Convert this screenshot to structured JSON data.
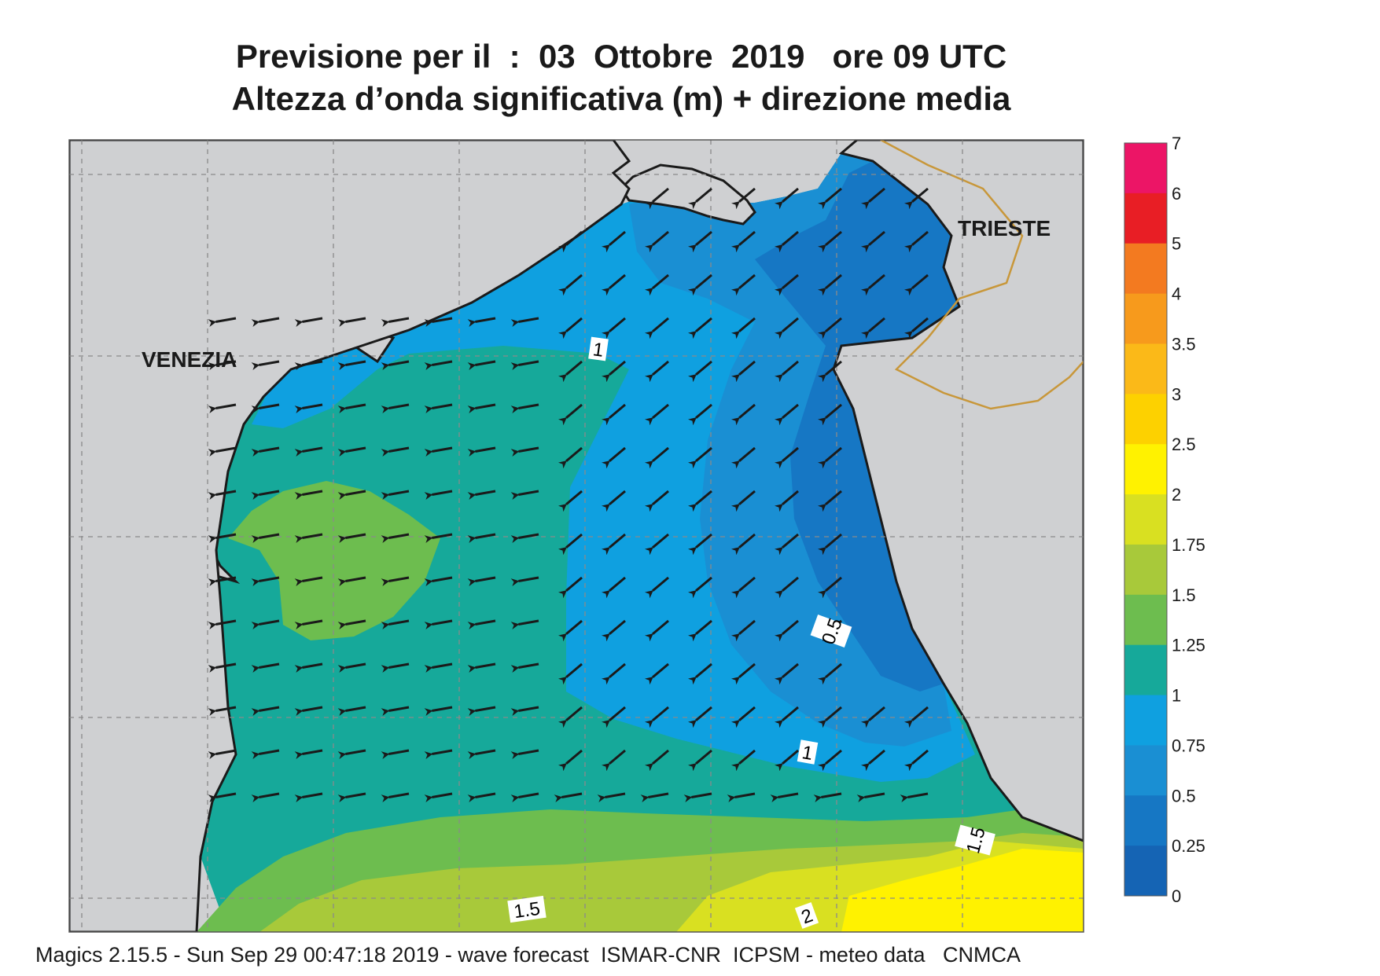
{
  "header": {
    "title_line1": "Previsione per il  :  03  Ottobre  2019   ore 09 UTC",
    "title_line2": "Altezza d’onda significativa (m) + direzione media"
  },
  "map": {
    "cities": [
      {
        "name": "VENEZIA"
      },
      {
        "name": "TRIESTE"
      }
    ],
    "contour_labels": [
      "1",
      "0.5",
      "1",
      "1.5",
      "1.5",
      "2"
    ],
    "colors": {
      "land": "#cfd0d2",
      "coast": "#1a1a1a",
      "border": "#c8973a",
      "grid": "#8a8a8a"
    }
  },
  "legend": {
    "ticks": [
      "7",
      "6",
      "5",
      "4",
      "3.5",
      "3",
      "2.5",
      "2",
      "1.75",
      "1.5",
      "1.25",
      "1",
      "0.75",
      "0.5",
      "0.25",
      "0"
    ],
    "colors_top_to_bottom": [
      "#ec1566",
      "#e81e25",
      "#f37a20",
      "#f79a1c",
      "#fbb918",
      "#fdd100",
      "#fff200",
      "#d9e021",
      "#a8c93a",
      "#6dbd4f",
      "#16a99a",
      "#0fa0e0",
      "#1a8fd3",
      "#1677c4",
      "#1564b4"
    ]
  },
  "footer": {
    "text": "Magics 2.15.5 - Sun Sep 29 00:47:18 2019 - wave forecast  ISMAR-CNR  ICPSM - meteo data   CNMCA"
  }
}
